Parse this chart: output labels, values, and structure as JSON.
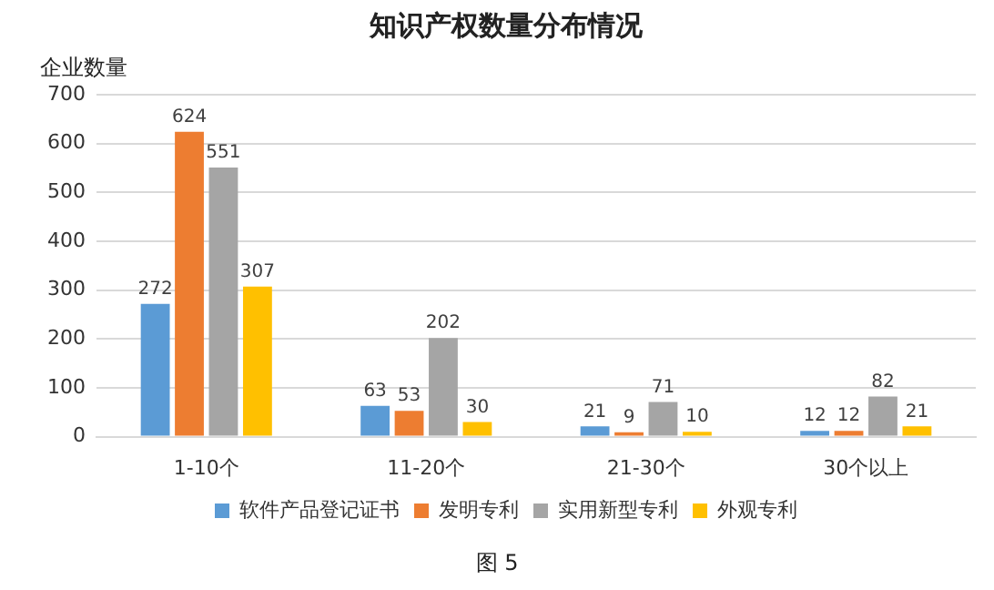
{
  "chart_data": {
    "type": "bar",
    "title": "知识产权数量分布情况",
    "ylabel": "企业数量",
    "categories": [
      "1-10个",
      "11-20个",
      "21-30个",
      "30个以上"
    ],
    "series": [
      {
        "name": "软件产品登记证书",
        "color": "#5b9bd5",
        "values": [
          272,
          63,
          21,
          12
        ]
      },
      {
        "name": "发明专利",
        "color": "#ed7d31",
        "values": [
          624,
          53,
          9,
          12
        ]
      },
      {
        "name": "实用新型专利",
        "color": "#a5a5a5",
        "values": [
          551,
          202,
          71,
          82
        ]
      },
      {
        "name": "外观专利",
        "color": "#ffc000",
        "values": [
          307,
          30,
          10,
          21
        ]
      }
    ],
    "ylim": [
      0,
      700
    ],
    "yticks": [
      0,
      100,
      200,
      300,
      400,
      500,
      600,
      700
    ],
    "grid": "y",
    "legend": "bottom",
    "data_labels": true,
    "annotations": [
      "图 5"
    ]
  }
}
